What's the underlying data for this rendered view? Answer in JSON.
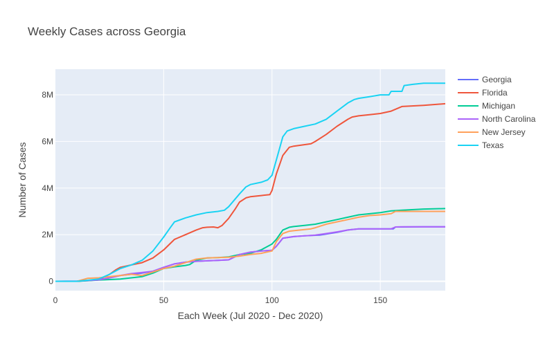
{
  "chart_data": {
    "type": "line",
    "title": "Weekly Cases across Georgia",
    "xlabel": "Each Week (Jul 2020 - Dec 2020)",
    "ylabel": "Number of Cases",
    "xlim": [
      0,
      180
    ],
    "ylim": [
      -400000,
      9100000
    ],
    "x_ticks": [
      0,
      50,
      100,
      150
    ],
    "y_ticks": [
      0,
      2000000,
      4000000,
      6000000,
      8000000
    ],
    "x_tick_labels": [
      "0",
      "50",
      "100",
      "150"
    ],
    "y_tick_labels": [
      "0",
      "2M",
      "4M",
      "6M",
      "8M"
    ],
    "grid": true,
    "legend": "right",
    "series": [
      {
        "name": "Georgia",
        "color": "#636efa",
        "x": [
          0,
          10,
          20,
          25,
          30,
          40,
          45,
          50,
          55,
          60,
          65,
          70,
          75,
          80,
          85,
          90,
          95,
          100,
          102,
          105,
          110,
          115,
          122,
          130,
          135,
          140,
          150,
          156,
          157,
          160,
          170,
          180
        ],
        "y": [
          0,
          10000,
          60000,
          150000,
          250000,
          350000,
          430000,
          600000,
          750000,
          820000,
          860000,
          880000,
          900000,
          920000,
          1150000,
          1250000,
          1300000,
          1330000,
          1500000,
          1850000,
          1920000,
          1950000,
          1980000,
          2100000,
          2200000,
          2250000,
          2250000,
          2250000,
          2330000,
          2330000,
          2340000,
          2340000
        ]
      },
      {
        "name": "Florida",
        "color": "#ef553b",
        "x": [
          0,
          10,
          20,
          25,
          28,
          30,
          35,
          40,
          45,
          50,
          55,
          60,
          65,
          68,
          70,
          73,
          75,
          77,
          80,
          83,
          85,
          88,
          90,
          95,
          99,
          100,
          102,
          105,
          108,
          110,
          118,
          120,
          125,
          130,
          135,
          137,
          140,
          145,
          150,
          155,
          160,
          170,
          180
        ],
        "y": [
          0,
          0,
          60000,
          300000,
          500000,
          600000,
          700000,
          800000,
          1000000,
          1350000,
          1800000,
          2000000,
          2200000,
          2300000,
          2320000,
          2330000,
          2300000,
          2400000,
          2700000,
          3100000,
          3400000,
          3580000,
          3630000,
          3680000,
          3720000,
          3900000,
          4600000,
          5400000,
          5750000,
          5800000,
          5900000,
          6000000,
          6300000,
          6650000,
          6950000,
          7050000,
          7100000,
          7150000,
          7200000,
          7300000,
          7500000,
          7550000,
          7620000
        ]
      },
      {
        "name": "Michigan",
        "color": "#00cc96",
        "x": [
          0,
          10,
          20,
          30,
          40,
          45,
          50,
          55,
          60,
          62,
          65,
          70,
          75,
          80,
          85,
          90,
          95,
          100,
          102,
          105,
          108,
          110,
          115,
          120,
          125,
          130,
          135,
          140,
          150,
          155,
          160,
          170,
          180
        ],
        "y": [
          0,
          0,
          50000,
          100000,
          200000,
          350000,
          550000,
          620000,
          680000,
          720000,
          900000,
          1000000,
          1020000,
          1050000,
          1150000,
          1200000,
          1350000,
          1600000,
          1800000,
          2200000,
          2320000,
          2350000,
          2400000,
          2450000,
          2550000,
          2650000,
          2750000,
          2850000,
          2950000,
          3020000,
          3050000,
          3100000,
          3120000
        ]
      },
      {
        "name": "North Carolina",
        "color": "#ab63fa",
        "x": [
          0,
          10,
          20,
          25,
          30,
          35,
          40,
          45,
          50,
          55,
          60,
          65,
          70,
          75,
          80,
          85,
          90,
          95,
          100,
          102,
          105,
          110,
          115,
          120,
          125,
          130,
          135,
          140,
          150,
          155,
          157,
          160,
          170,
          180
        ],
        "y": [
          0,
          10000,
          60000,
          150000,
          250000,
          330000,
          380000,
          430000,
          600000,
          750000,
          820000,
          860000,
          880000,
          900000,
          920000,
          1150000,
          1250000,
          1300000,
          1330000,
          1500000,
          1850000,
          1920000,
          1950000,
          1980000,
          2050000,
          2120000,
          2200000,
          2250000,
          2250000,
          2250000,
          2330000,
          2340000,
          2340000,
          2340000
        ]
      },
      {
        "name": "New Jersey",
        "color": "#ffa15a",
        "x": [
          0,
          10,
          15,
          20,
          25,
          30,
          35,
          40,
          45,
          50,
          55,
          60,
          65,
          70,
          75,
          80,
          85,
          90,
          95,
          100,
          102,
          105,
          108,
          110,
          118,
          120,
          125,
          130,
          135,
          140,
          145,
          150,
          155,
          157,
          160,
          170,
          180
        ],
        "y": [
          0,
          0,
          130000,
          150000,
          200000,
          250000,
          300000,
          250000,
          400000,
          550000,
          650000,
          800000,
          950000,
          1000000,
          1020000,
          1030000,
          1080000,
          1150000,
          1200000,
          1300000,
          1700000,
          2050000,
          2150000,
          2170000,
          2250000,
          2300000,
          2450000,
          2550000,
          2650000,
          2750000,
          2820000,
          2850000,
          2900000,
          3000000,
          3000000,
          3000000,
          3000000
        ]
      },
      {
        "name": "Texas",
        "color": "#19d3f3",
        "x": [
          0,
          10,
          20,
          25,
          30,
          35,
          40,
          45,
          50,
          53,
          55,
          60,
          65,
          70,
          75,
          78,
          80,
          85,
          88,
          90,
          95,
          98,
          100,
          102,
          105,
          107,
          110,
          115,
          120,
          125,
          130,
          135,
          138,
          140,
          145,
          150,
          154,
          155,
          160,
          161,
          165,
          170,
          180
        ],
        "y": [
          0,
          0,
          100000,
          300000,
          550000,
          700000,
          900000,
          1300000,
          1900000,
          2300000,
          2550000,
          2720000,
          2850000,
          2950000,
          3000000,
          3050000,
          3200000,
          3750000,
          4050000,
          4150000,
          4250000,
          4350000,
          4550000,
          5200000,
          6200000,
          6450000,
          6550000,
          6650000,
          6750000,
          6950000,
          7300000,
          7650000,
          7800000,
          7850000,
          7920000,
          8000000,
          8000000,
          8150000,
          8150000,
          8400000,
          8450000,
          8500000,
          8500000
        ]
      }
    ]
  }
}
